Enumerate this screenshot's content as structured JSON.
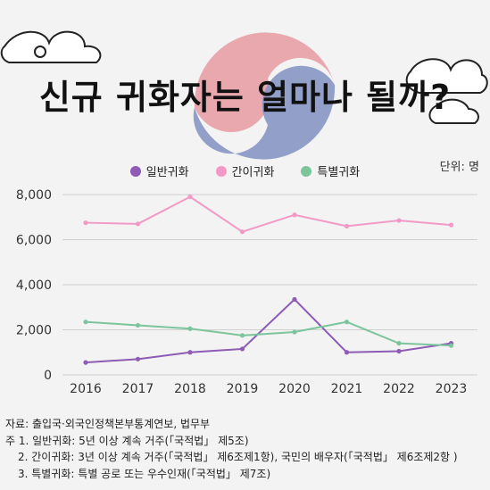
{
  "header": {
    "title": "신규 귀화자는 얼마나 될까?",
    "unit_label": "단위: 명"
  },
  "legend": [
    {
      "label": "일반귀화",
      "color": "#8e5bb5"
    },
    {
      "label": "간이귀화",
      "color": "#f29ac5"
    },
    {
      "label": "특별귀화",
      "color": "#7cc59c"
    }
  ],
  "chart_data": {
    "type": "line",
    "x": [
      "2016",
      "2017",
      "2018",
      "2019",
      "2020",
      "2021",
      "2022",
      "2023"
    ],
    "series": [
      {
        "name": "일반귀화",
        "color": "#8e5bb5",
        "values": [
          550,
          700,
          1000,
          1150,
          3350,
          1000,
          1050,
          1400
        ]
      },
      {
        "name": "간이귀화",
        "color": "#f29ac5",
        "values": [
          6750,
          6700,
          7900,
          6350,
          7100,
          6600,
          6850,
          6650
        ]
      },
      {
        "name": "특별귀화",
        "color": "#7cc59c",
        "values": [
          2350,
          2200,
          2050,
          1750,
          1900,
          2350,
          1400,
          1300
        ]
      }
    ],
    "ylim": [
      0,
      8000
    ],
    "yticks": [
      "0",
      "2,000",
      "4,000",
      "6,000",
      "8,000"
    ],
    "grid": true,
    "legend_position": "top"
  },
  "notes": {
    "source": "자료: 출입국·외국인정책본부통계연보, 법무부",
    "note1": "주 1. 일반귀화: 5년 이상 계속 거주(「국적법」 제5조)",
    "note2": "2. 간이귀화: 3년 이상 계속 거주(「국적법」 제6조제1항), 국민의 배우자(「국적법」 제6조제2항 )",
    "note3": "3. 특별귀화: 특별 공로 또는 우수인재(「국적법」 제7조)"
  }
}
